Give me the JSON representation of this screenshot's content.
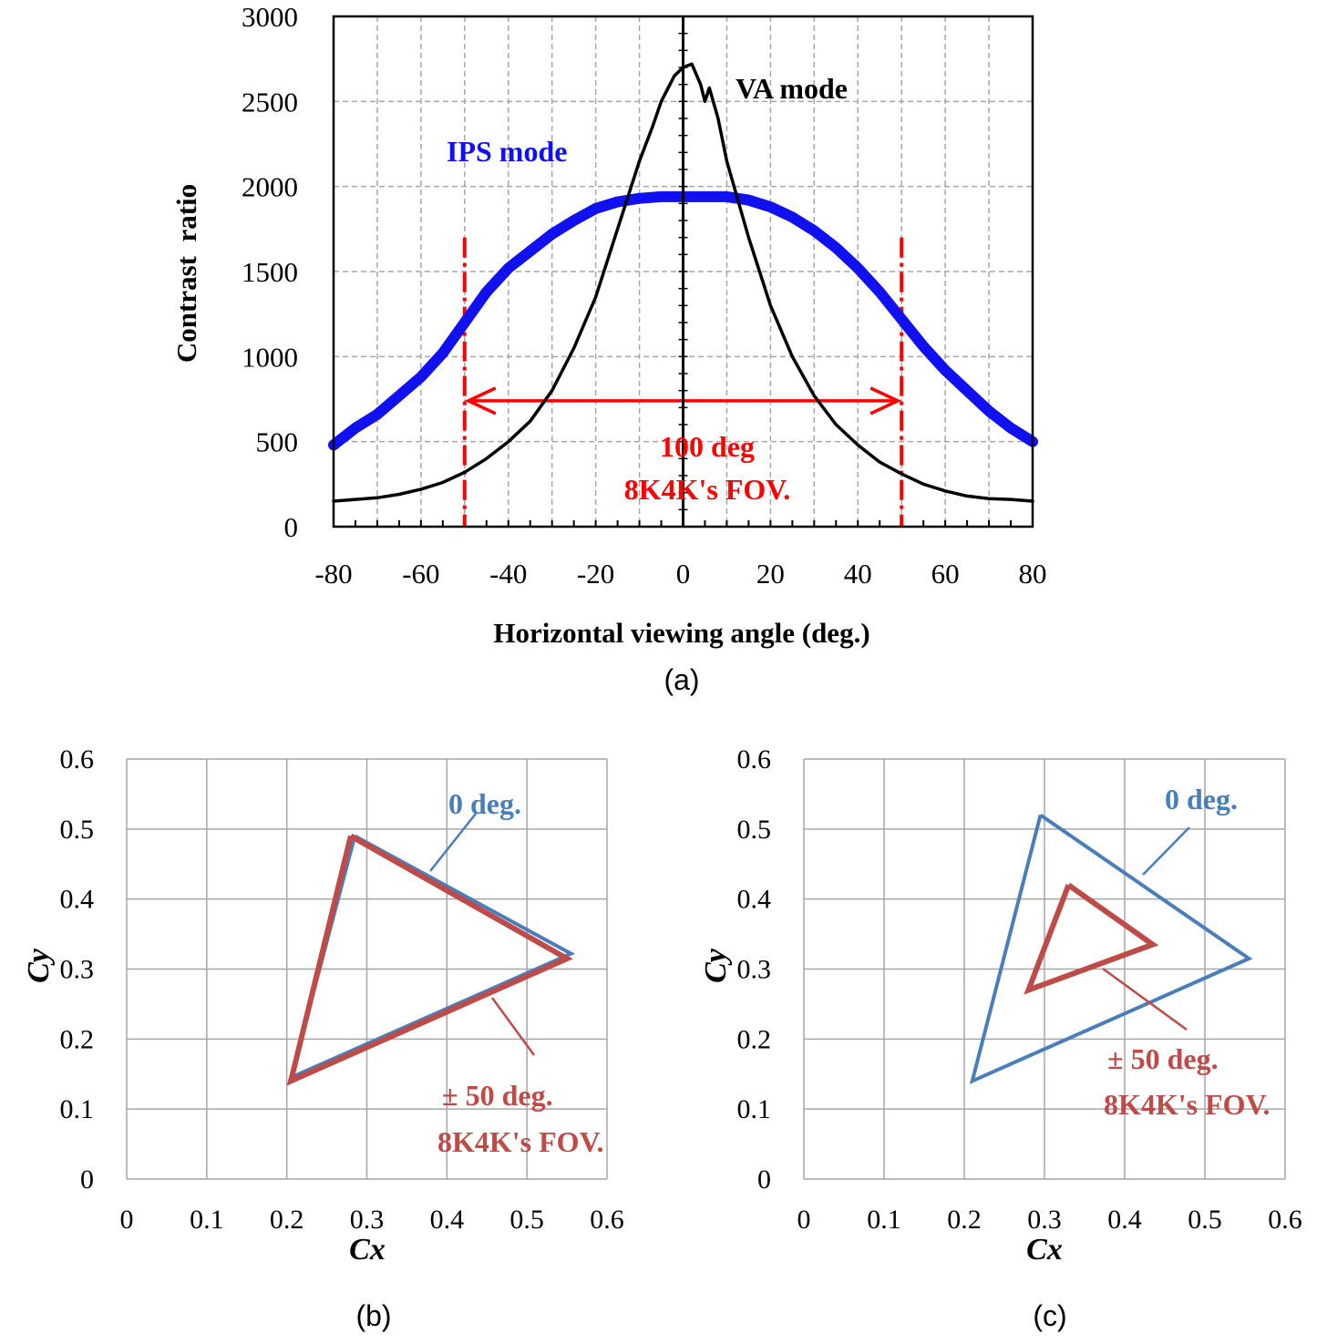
{
  "colors": {
    "ips": "#1010f0",
    "va": "#000000",
    "fov_marker": "#ff0000",
    "tri_0deg": "#4a7ebb",
    "tri_50deg": "#be4b48",
    "grid": "#a6a6a6"
  },
  "chart_data": [
    {
      "panel": "(a)",
      "type": "line",
      "xlabel": "Horizontal viewing angle (deg.)",
      "ylabel": "Contrast  ratio",
      "xlim": [
        -80,
        80
      ],
      "ylim": [
        0,
        3000
      ],
      "xticks": [
        -80,
        -60,
        -40,
        -20,
        0,
        20,
        40,
        60,
        80
      ],
      "yticks": [
        0,
        500,
        1000,
        1500,
        2000,
        2500,
        3000
      ],
      "grid": true,
      "series": [
        {
          "name": "IPS mode",
          "color": "#1010f0",
          "x": [
            -80,
            -75,
            -70,
            -65,
            -60,
            -55,
            -50,
            -45,
            -40,
            -35,
            -30,
            -25,
            -20,
            -15,
            -10,
            -5,
            0,
            5,
            10,
            15,
            20,
            25,
            30,
            35,
            40,
            45,
            50,
            55,
            60,
            65,
            70,
            75,
            80
          ],
          "y": [
            480,
            580,
            660,
            770,
            880,
            1020,
            1200,
            1380,
            1520,
            1620,
            1720,
            1800,
            1870,
            1910,
            1930,
            1940,
            1940,
            1940,
            1940,
            1920,
            1880,
            1820,
            1740,
            1640,
            1520,
            1380,
            1220,
            1060,
            920,
            800,
            680,
            580,
            500
          ]
        },
        {
          "name": "VA mode",
          "color": "#000000",
          "x": [
            -80,
            -75,
            -70,
            -65,
            -60,
            -55,
            -50,
            -45,
            -40,
            -35,
            -30,
            -25,
            -20,
            -15,
            -10,
            -7,
            -5,
            -2,
            0,
            2,
            4,
            5,
            6,
            8,
            10,
            15,
            20,
            25,
            30,
            35,
            40,
            45,
            50,
            55,
            60,
            65,
            70,
            75,
            80
          ],
          "y": [
            150,
            160,
            170,
            190,
            220,
            260,
            320,
            400,
            500,
            620,
            800,
            1050,
            1350,
            1750,
            2150,
            2350,
            2500,
            2650,
            2700,
            2720,
            2600,
            2500,
            2580,
            2400,
            2150,
            1700,
            1300,
            1000,
            770,
            600,
            480,
            380,
            310,
            250,
            210,
            180,
            165,
            160,
            150
          ]
        }
      ],
      "annotations": {
        "ips_label": "IPS mode",
        "va_label": "VA mode",
        "fov_line1": "100 deg",
        "fov_line2": "8K4K's FOV.",
        "fov_marker_x": [
          -50,
          50
        ],
        "fov_arrow_y": 740
      },
      "caption": "(a)"
    },
    {
      "panel": "(b)",
      "type": "line",
      "xlabel": "Cx",
      "ylabel": "Cy",
      "xlim": [
        0,
        0.6
      ],
      "ylim": [
        0,
        0.6
      ],
      "xticks": [
        0,
        0.1,
        0.2,
        0.3,
        0.4,
        0.5,
        0.6
      ],
      "yticks": [
        0,
        0.1,
        0.2,
        0.3,
        0.4,
        0.5,
        0.6
      ],
      "grid": true,
      "series": [
        {
          "name": "0 deg.",
          "color": "#4a7ebb",
          "x": [
            0.285,
            0.555,
            0.205,
            0.285
          ],
          "y": [
            0.49,
            0.322,
            0.145,
            0.49
          ]
        },
        {
          "name": "± 50 deg.",
          "color": "#be4b48",
          "x": [
            0.28,
            0.55,
            0.205,
            0.28
          ],
          "y": [
            0.49,
            0.315,
            0.14,
            0.49
          ]
        }
      ],
      "annotations": {
        "label_0": "0 deg.",
        "label_50_line1": "± 50 deg.",
        "label_50_line2": "8K4K's FOV."
      },
      "caption": "(b)"
    },
    {
      "panel": "(c)",
      "type": "line",
      "xlabel": "Cx",
      "ylabel": "Cy",
      "xlim": [
        0,
        0.6
      ],
      "ylim": [
        0,
        0.6
      ],
      "xticks": [
        0,
        0.1,
        0.2,
        0.3,
        0.4,
        0.5,
        0.6
      ],
      "yticks": [
        0,
        0.1,
        0.2,
        0.3,
        0.4,
        0.5,
        0.6
      ],
      "grid": true,
      "series": [
        {
          "name": "0 deg.",
          "color": "#4a7ebb",
          "x": [
            0.295,
            0.555,
            0.21,
            0.295
          ],
          "y": [
            0.52,
            0.315,
            0.14,
            0.52
          ]
        },
        {
          "name": "± 50 deg.",
          "color": "#be4b48",
          "x": [
            0.33,
            0.435,
            0.28,
            0.33
          ],
          "y": [
            0.42,
            0.335,
            0.27,
            0.42
          ]
        }
      ],
      "annotations": {
        "label_0": "0 deg.",
        "label_50_line1": "± 50 deg.",
        "label_50_line2": "8K4K's FOV."
      },
      "caption": "(c)"
    }
  ]
}
